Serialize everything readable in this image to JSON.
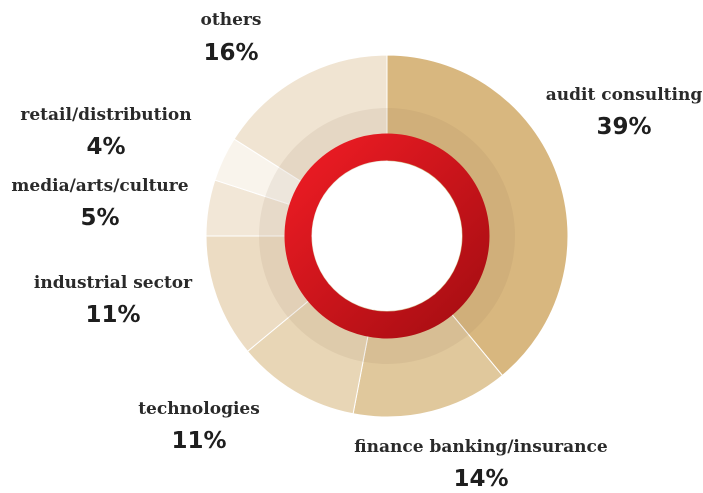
{
  "chart_data": {
    "type": "pie",
    "categories": [
      "audit consulting",
      "finance banking/insurance",
      "technologies",
      "industrial sector",
      "media/arts/culture",
      "retail/distribution",
      "others"
    ],
    "values": [
      39,
      14,
      11,
      11,
      5,
      4,
      16
    ],
    "value_labels": [
      "39%",
      "14%",
      "11%",
      "11%",
      "5%",
      "4%",
      "16%"
    ],
    "colors": [
      "#d8b77f",
      "#e0c89c",
      "#e8d6b6",
      "#ecdcc3",
      "#f2e7d7",
      "#f9f4ec",
      "#f0e4d2"
    ]
  }
}
